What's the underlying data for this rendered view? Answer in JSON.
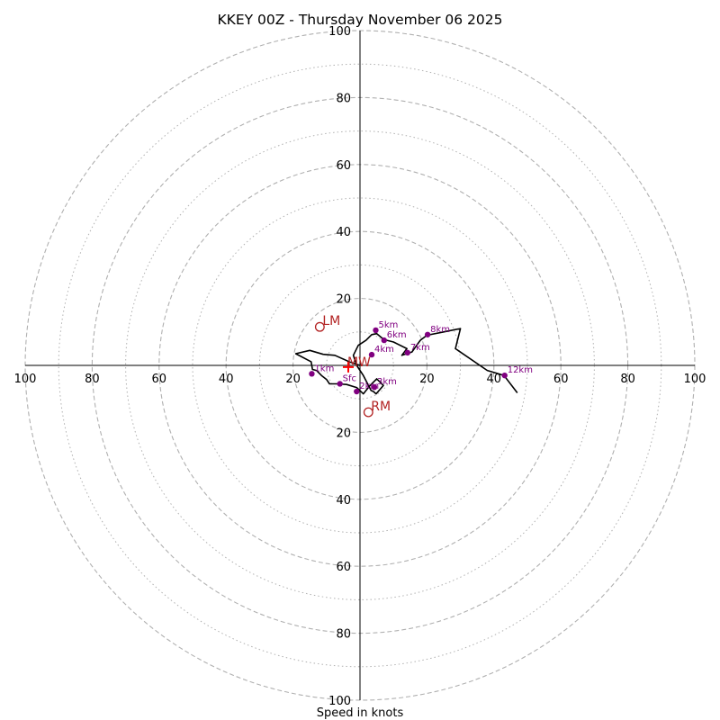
{
  "chart_data": {
    "type": "hodograph",
    "title": "KKEY 00Z - Thursday November 06 2025",
    "xlabel": "Speed in knots",
    "max_speed": 100,
    "ring_major": [
      20,
      40,
      60,
      80,
      100
    ],
    "ring_minor": [
      10,
      30,
      50,
      70,
      90
    ],
    "tick_labels": {
      "x_left": [
        "100",
        "80",
        "60",
        "40",
        "20"
      ],
      "x_right": [
        "20",
        "40",
        "60",
        "80",
        "100"
      ],
      "y_up": [
        "20",
        "40",
        "60",
        "80",
        "100"
      ],
      "y_down": [
        "20",
        "40",
        "60",
        "80",
        "100"
      ]
    },
    "trace": {
      "name": "wind profile",
      "u": [
        0.0,
        -3.0,
        -7.5,
        -11.0,
        -15.0,
        -19.2,
        -14.6,
        -14.2,
        -13.0,
        -11.5,
        -10.0,
        -9.1,
        -7.0,
        -4.0,
        -1.0,
        1.0,
        3.0,
        5.0,
        7.0,
        4.8,
        4.0,
        3.3,
        1.0,
        -1.0,
        -2.0,
        -0.5,
        1.8,
        3.5,
        5.0,
        6.8,
        8.0,
        10.0,
        14.0,
        12.5,
        15.5,
        18.0,
        20.0,
        25.0,
        30.0,
        28.5,
        38.0,
        43.0,
        47.0
      ],
      "v": [
        0.0,
        1.0,
        3.0,
        3.3,
        4.5,
        3.5,
        1.1,
        -1.2,
        -1.5,
        -3.0,
        -4.2,
        -5.5,
        -5.5,
        -5.7,
        -6.6,
        -8.5,
        -6.0,
        -4.0,
        -6.0,
        -8.5,
        -7.8,
        -7.5,
        -3.0,
        0.0,
        3.0,
        6.0,
        7.5,
        9.2,
        9.5,
        8.0,
        7.5,
        7.0,
        5.0,
        3.0,
        4.0,
        7.5,
        9.0,
        10.0,
        11.0,
        5.0,
        -1.5,
        -3.0,
        -8.2
      ]
    },
    "heights": [
      {
        "label": "1km",
        "u": -14.4,
        "v": -2.5
      },
      {
        "label": "2km",
        "u": -1.0,
        "v": -7.8
      },
      {
        "label": "3km",
        "u": 4.3,
        "v": -6.5
      },
      {
        "label": "4km",
        "u": 3.5,
        "v": 3.2
      },
      {
        "label": "5km",
        "u": 4.7,
        "v": 10.5
      },
      {
        "label": "6km",
        "u": 7.2,
        "v": 7.5
      },
      {
        "label": "7km",
        "u": 14.2,
        "v": 3.8
      },
      {
        "label": "8km",
        "u": 20.2,
        "v": 9.2
      },
      {
        "label": "12km",
        "u": 43.2,
        "v": -3.0
      },
      {
        "label": "Sfc",
        "u": -6.0,
        "v": -5.5
      }
    ],
    "storm_motion": {
      "mean_wind": {
        "label": "MW",
        "u": -3.5,
        "v": -0.5
      },
      "left_mover": {
        "label": "LM",
        "u": -12.0,
        "v": 11.5
      },
      "right_mover": {
        "label": "RM",
        "u": 2.5,
        "v": -14.0
      }
    },
    "colors": {
      "trace": "#000000",
      "height_marker": "#800080",
      "storm_marker": "#b22222",
      "mean_wind": "#ff0000",
      "ring": "#b0b0b0",
      "axis": "#000000"
    }
  }
}
